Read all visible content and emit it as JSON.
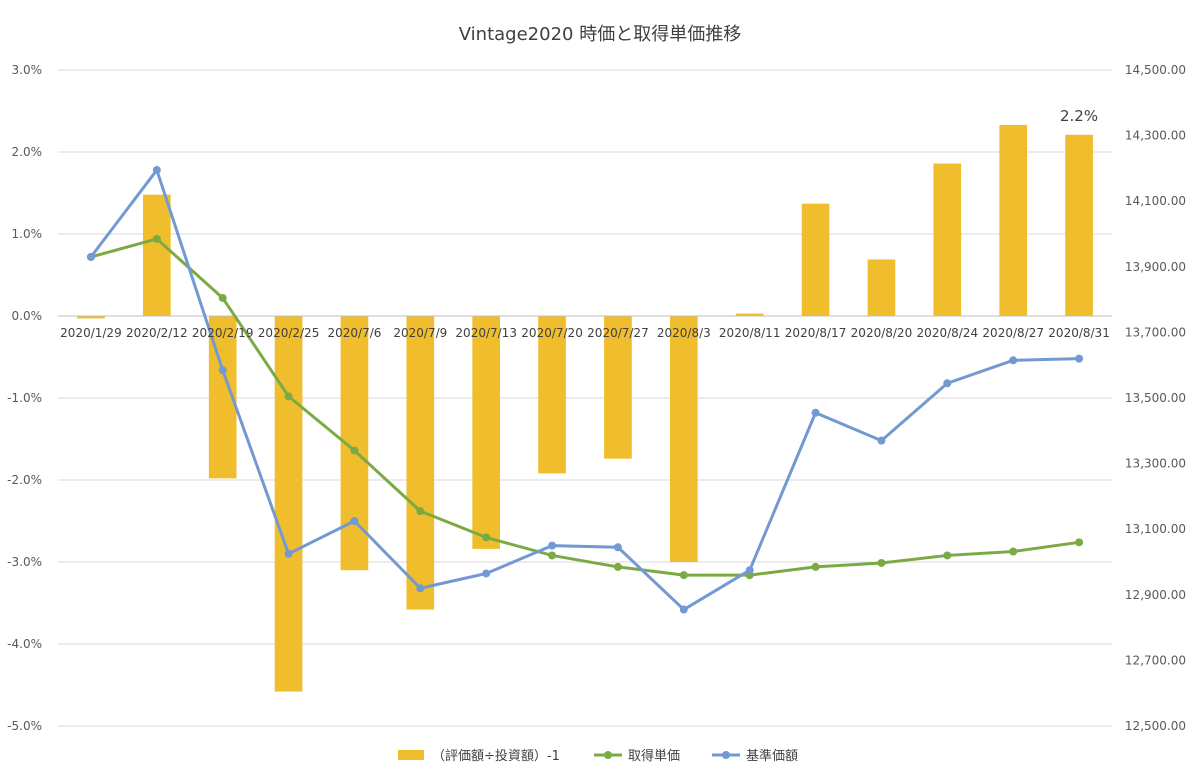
{
  "chart_data": {
    "type": "bar+line",
    "title": "Vintage2020 時価と取得単価推移",
    "categories": [
      "2020/1/29",
      "2020/2/12",
      "2020/2/19",
      "2020/2/25",
      "2020/7/6",
      "2020/7/9",
      "2020/7/13",
      "2020/7/20",
      "2020/7/27",
      "2020/8/3",
      "2020/8/11",
      "2020/8/17",
      "2020/8/20",
      "2020/8/24",
      "2020/8/27",
      "2020/8/31"
    ],
    "left_axis": {
      "min": -5.0,
      "max": 3.0,
      "step": 1.0,
      "suffix": "%",
      "decimals": 1
    },
    "right_axis": {
      "min": 12500,
      "max": 14500,
      "step": 200,
      "decimals": 2
    },
    "series": [
      {
        "name": "（評価額÷投資額）-1",
        "type": "bar",
        "axis": "left",
        "color": "#F0BE2C",
        "values": [
          -0.03,
          1.48,
          -1.98,
          -4.58,
          -3.1,
          -3.58,
          -2.84,
          -1.92,
          -1.74,
          -3.0,
          0.03,
          1.37,
          0.69,
          1.86,
          2.33,
          2.21
        ]
      },
      {
        "name": "取得単価",
        "type": "line",
        "axis": "right",
        "color": "#7BAA45",
        "values": [
          13930,
          13985,
          13805,
          13505,
          13340,
          13155,
          13075,
          13020,
          12985,
          12960,
          12960,
          12985,
          12997,
          13020,
          13032,
          13060
        ]
      },
      {
        "name": "基準価額",
        "type": "line",
        "axis": "right",
        "color": "#7299D2",
        "values": [
          13930,
          14195,
          13585,
          13025,
          13125,
          12920,
          12965,
          13050,
          13045,
          12855,
          12975,
          13455,
          13370,
          13545,
          13615,
          13620
        ]
      }
    ],
    "annotations": [
      {
        "category_index": 15,
        "text": "2.2%"
      }
    ],
    "gridlines": true,
    "legend_position": "bottom"
  }
}
